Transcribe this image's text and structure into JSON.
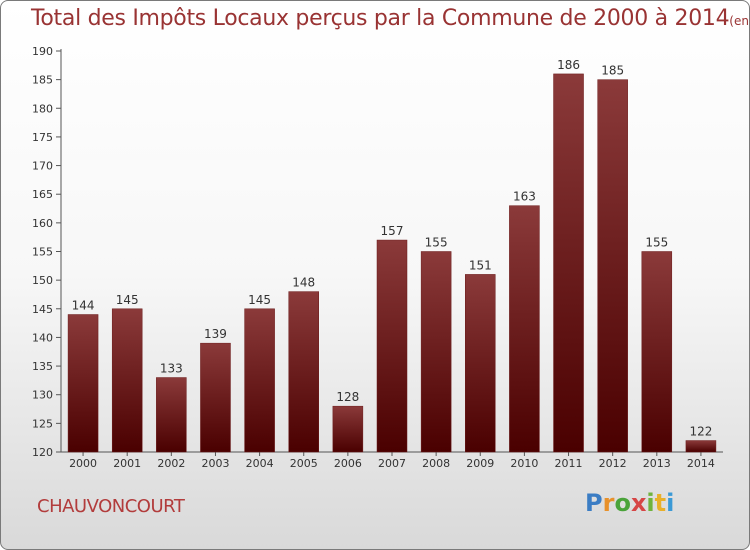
{
  "title": "Total des Impôts Locaux perçus par la Commune de 2000 à 2014",
  "subtitle": "(en milliers d'€)",
  "commune": "CHAUVONCOURT",
  "logo_text": "Proxiti",
  "colors": {
    "title": "#993333",
    "bar_top": "#8b3a3a",
    "bar_bottom": "#4a0000",
    "axis": "#555555"
  },
  "chart_data": {
    "type": "bar",
    "title": "Total des Impôts Locaux perçus par la Commune de 2000 à 2014",
    "xlabel": "",
    "ylabel": "",
    "categories": [
      "2000",
      "2001",
      "2002",
      "2003",
      "2004",
      "2005",
      "2006",
      "2007",
      "2008",
      "2009",
      "2010",
      "2011",
      "2012",
      "2013",
      "2014"
    ],
    "values": [
      144,
      145,
      133,
      139,
      145,
      148,
      128,
      157,
      155,
      151,
      163,
      186,
      185,
      155,
      122
    ],
    "ylim": [
      120,
      190
    ],
    "yticks": [
      120,
      125,
      130,
      135,
      140,
      145,
      150,
      155,
      160,
      165,
      170,
      175,
      180,
      185,
      190
    ],
    "grid": false
  }
}
